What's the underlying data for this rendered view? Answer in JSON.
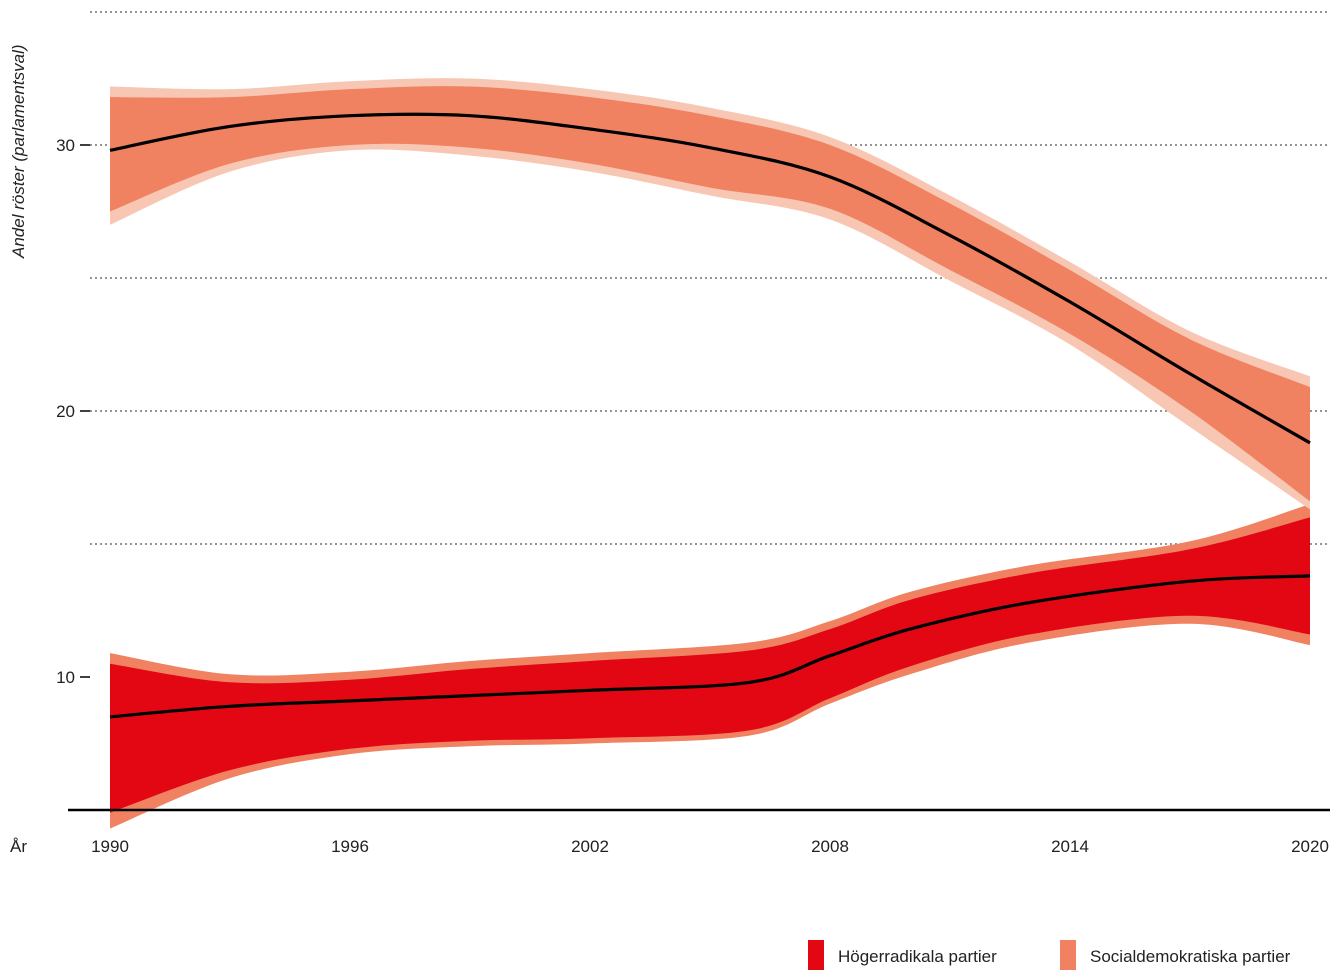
{
  "chart_data": {
    "type": "line",
    "title": "",
    "ylabel": "Andel röster (parlamentsval)",
    "xlabel": "År",
    "xlim": [
      1990,
      2020
    ],
    "ylim": [
      5,
      35
    ],
    "x_ticks": [
      "1990",
      "1996",
      "2002",
      "2008",
      "2014",
      "2020"
    ],
    "y_ticks": [
      "10",
      "20",
      "30"
    ],
    "gridlines_y": [
      15,
      20,
      25,
      30,
      35
    ],
    "grid": "horizontal dotted",
    "legend_position": "bottom-right",
    "series": [
      {
        "name": "Högerradikala partier",
        "color": "#e30613",
        "outer_band_color": "#f08262",
        "points": [
          {
            "x": 1990,
            "y": 8.5,
            "lo": 4.9,
            "hi": 10.5,
            "lo_outer": 4.3,
            "hi_outer": 10.9
          },
          {
            "x": 1993,
            "y": 8.9,
            "lo": 6.5,
            "hi": 9.8,
            "lo_outer": 6.2,
            "hi_outer": 10.1
          },
          {
            "x": 1996,
            "y": 9.1,
            "lo": 7.3,
            "hi": 9.9,
            "lo_outer": 7.1,
            "hi_outer": 10.2
          },
          {
            "x": 1999,
            "y": 9.3,
            "lo": 7.6,
            "hi": 10.3,
            "lo_outer": 7.4,
            "hi_outer": 10.6
          },
          {
            "x": 2002,
            "y": 9.5,
            "lo": 7.7,
            "hi": 10.6,
            "lo_outer": 7.5,
            "hi_outer": 10.9
          },
          {
            "x": 2006,
            "y": 9.8,
            "lo": 8.0,
            "hi": 11.0,
            "lo_outer": 7.8,
            "hi_outer": 11.3
          },
          {
            "x": 2008,
            "y": 10.8,
            "lo": 9.2,
            "hi": 11.8,
            "lo_outer": 9.0,
            "hi_outer": 12.1
          },
          {
            "x": 2010,
            "y": 11.8,
            "lo": 10.4,
            "hi": 12.9,
            "lo_outer": 10.1,
            "hi_outer": 13.2
          },
          {
            "x": 2013,
            "y": 12.8,
            "lo": 11.6,
            "hi": 13.9,
            "lo_outer": 11.3,
            "hi_outer": 14.2
          },
          {
            "x": 2017,
            "y": 13.6,
            "lo": 12.3,
            "hi": 14.8,
            "lo_outer": 12.0,
            "hi_outer": 15.1
          },
          {
            "x": 2020,
            "y": 13.8,
            "lo": 11.6,
            "hi": 16.0,
            "lo_outer": 11.2,
            "hi_outer": 16.5
          }
        ]
      },
      {
        "name": "Socialdemokratiska partier",
        "color": "#f08262",
        "outer_band_color": "#f8c7b3",
        "points": [
          {
            "x": 1990,
            "y": 29.8,
            "lo": 27.5,
            "hi": 31.8,
            "lo_outer": 27.0,
            "hi_outer": 32.2
          },
          {
            "x": 1993,
            "y": 30.7,
            "lo": 29.3,
            "hi": 31.8,
            "lo_outer": 29.0,
            "hi_outer": 32.1
          },
          {
            "x": 1996,
            "y": 31.1,
            "lo": 30.0,
            "hi": 32.1,
            "lo_outer": 29.8,
            "hi_outer": 32.4
          },
          {
            "x": 1999,
            "y": 31.1,
            "lo": 29.9,
            "hi": 32.2,
            "lo_outer": 29.6,
            "hi_outer": 32.5
          },
          {
            "x": 2002,
            "y": 30.6,
            "lo": 29.3,
            "hi": 31.8,
            "lo_outer": 29.0,
            "hi_outer": 32.1
          },
          {
            "x": 2005,
            "y": 29.9,
            "lo": 28.4,
            "hi": 31.1,
            "lo_outer": 28.1,
            "hi_outer": 31.4
          },
          {
            "x": 2008,
            "y": 28.8,
            "lo": 27.6,
            "hi": 30.0,
            "lo_outer": 27.2,
            "hi_outer": 30.3
          },
          {
            "x": 2011,
            "y": 26.6,
            "lo": 25.3,
            "hi": 27.8,
            "lo_outer": 24.9,
            "hi_outer": 28.1
          },
          {
            "x": 2014,
            "y": 24.1,
            "lo": 22.9,
            "hi": 25.3,
            "lo_outer": 22.5,
            "hi_outer": 25.6
          },
          {
            "x": 2017,
            "y": 21.4,
            "lo": 20.0,
            "hi": 22.7,
            "lo_outer": 19.4,
            "hi_outer": 23.0
          },
          {
            "x": 2020,
            "y": 18.8,
            "lo": 16.6,
            "hi": 20.9,
            "lo_outer": 16.3,
            "hi_outer": 21.3
          }
        ]
      }
    ]
  }
}
